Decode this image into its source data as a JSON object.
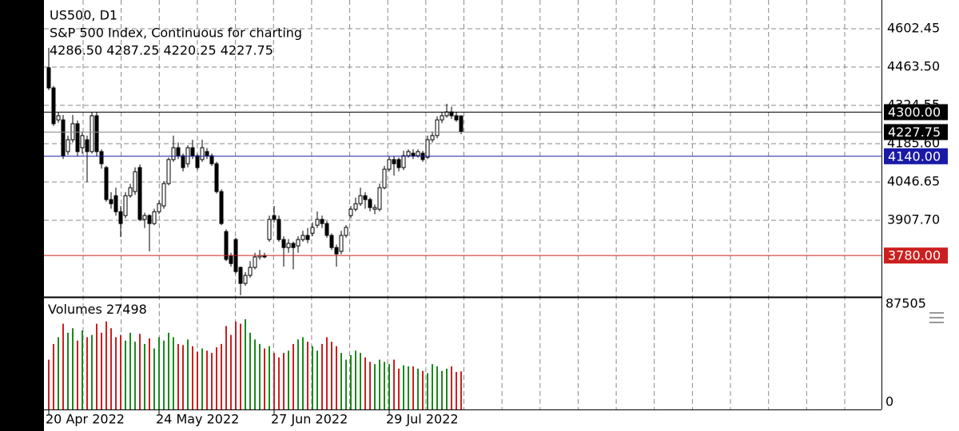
{
  "chart_data": {
    "type": "candlestick",
    "symbol": "US500, D1",
    "description": "S&P 500 Index, Continuous for charting",
    "ohlc_text": "4286.50 4287.25 4220.25 4227.75",
    "ylim": [
      3630,
      4706.7
    ],
    "yticks": [
      4602.45,
      {
        "value": 4463.5,
        "label": "4463.50"
      },
      {
        "value": 4324.55,
        "label": "4324.55"
      },
      {
        "value": 4185.6,
        "label": "4185.60"
      },
      4046.65,
      {
        "value": 3907.7,
        "label": "3907.70"
      }
    ],
    "xticks": [
      {
        "value": 0,
        "label": "20 Apr 2022"
      },
      {
        "value": 23,
        "label": "24 May 2022"
      },
      {
        "value": 47,
        "label": "27 Jun 2022"
      },
      {
        "value": 71,
        "label": "29 Jul 2022"
      }
    ],
    "up_color": "#ffffff",
    "down_color": "#000000",
    "candles": [
      [
        4461,
        4533,
        4380,
        4388
      ],
      [
        4388,
        4395,
        4250,
        4258
      ],
      [
        4272,
        4300,
        4262,
        4287
      ],
      [
        4272,
        4290,
        4130,
        4142
      ],
      [
        4157,
        4215,
        4145,
        4200
      ],
      [
        4200,
        4290,
        4190,
        4258
      ],
      [
        4258,
        4270,
        4140,
        4157
      ],
      [
        4171,
        4230,
        4150,
        4215
      ],
      [
        4200,
        4215,
        4046,
        4157
      ],
      [
        4157,
        4301,
        4150,
        4287
      ],
      [
        4287,
        4300,
        4140,
        4157
      ],
      [
        4157,
        4165,
        4095,
        4113
      ],
      [
        4099,
        4105,
        3975,
        3983
      ],
      [
        3983,
        4010,
        3950,
        3968
      ],
      [
        3997,
        4026,
        3925,
        3939
      ],
      [
        3939,
        3960,
        3847,
        3896
      ],
      [
        3925,
        4010,
        3915,
        3997
      ],
      [
        3997,
        4040,
        3990,
        4026
      ],
      [
        4012,
        4100,
        4000,
        4084
      ],
      [
        4099,
        4110,
        3905,
        3911
      ],
      [
        3911,
        3935,
        3880,
        3925
      ],
      [
        3925,
        3930,
        3795,
        3896
      ],
      [
        3896,
        3950,
        3890,
        3939
      ],
      [
        3939,
        3980,
        3930,
        3968
      ],
      [
        3960,
        4050,
        3950,
        4041
      ],
      [
        4041,
        4135,
        4035,
        4128
      ],
      [
        4128,
        4215,
        4120,
        4171
      ],
      [
        4171,
        4190,
        4130,
        4142
      ],
      [
        4142,
        4150,
        4085,
        4099
      ],
      [
        4113,
        4180,
        4100,
        4171
      ],
      [
        4171,
        4200,
        4130,
        4142
      ],
      [
        4142,
        4150,
        4090,
        4099
      ],
      [
        4128,
        4200,
        4120,
        4171
      ],
      [
        4157,
        4170,
        4130,
        4142
      ],
      [
        4142,
        4150,
        4105,
        4113
      ],
      [
        4113,
        4120,
        4005,
        4012
      ],
      [
        4012,
        4020,
        3890,
        3896
      ],
      [
        3867,
        3875,
        3760,
        3766
      ],
      [
        3780,
        3790,
        3740,
        3751
      ],
      [
        3838,
        3845,
        3715,
        3722
      ],
      [
        3737,
        3740,
        3636,
        3679
      ],
      [
        3679,
        3720,
        3670,
        3708
      ],
      [
        3708,
        3760,
        3700,
        3737
      ],
      [
        3737,
        3790,
        3730,
        3775
      ],
      [
        3775,
        3800,
        3765,
        3780
      ],
      [
        3780,
        3790,
        3770,
        3775
      ],
      [
        3838,
        3925,
        3830,
        3911
      ],
      [
        3925,
        3960,
        3900,
        3911
      ],
      [
        3911,
        3925,
        3830,
        3838
      ],
      [
        3838,
        3850,
        3740,
        3809
      ],
      [
        3809,
        3840,
        3790,
        3824
      ],
      [
        3824,
        3830,
        3730,
        3809
      ],
      [
        3815,
        3850,
        3790,
        3838
      ],
      [
        3838,
        3870,
        3830,
        3853
      ],
      [
        3853,
        3880,
        3825,
        3838
      ],
      [
        3861,
        3900,
        3850,
        3882
      ],
      [
        3890,
        3940,
        3880,
        3911
      ],
      [
        3911,
        3925,
        3880,
        3896
      ],
      [
        3896,
        3905,
        3845,
        3853
      ],
      [
        3853,
        3860,
        3800,
        3809
      ],
      [
        3809,
        3820,
        3740,
        3786
      ],
      [
        3795,
        3870,
        3785,
        3853
      ],
      [
        3853,
        3890,
        3845,
        3882
      ],
      [
        3925,
        3960,
        3915,
        3948
      ],
      [
        3948,
        3990,
        3940,
        3968
      ],
      [
        3968,
        4026,
        3960,
        3997
      ],
      [
        3997,
        4010,
        3950,
        3983
      ],
      [
        3983,
        3990,
        3940,
        3954
      ],
      [
        3948,
        3965,
        3930,
        3954
      ],
      [
        3948,
        4041,
        3940,
        4026
      ],
      [
        4026,
        4105,
        4020,
        4093
      ],
      [
        4093,
        4140,
        4085,
        4128
      ],
      [
        4128,
        4140,
        4070,
        4113
      ],
      [
        4128,
        4135,
        4085,
        4099
      ],
      [
        4099,
        4160,
        4090,
        4142
      ],
      [
        4142,
        4165,
        4135,
        4157
      ],
      [
        4151,
        4165,
        4130,
        4142
      ],
      [
        4142,
        4165,
        4135,
        4157
      ],
      [
        4151,
        4160,
        4120,
        4128
      ],
      [
        4136,
        4215,
        4130,
        4200
      ],
      [
        4200,
        4230,
        4190,
        4215
      ],
      [
        4215,
        4285,
        4205,
        4272
      ],
      [
        4272,
        4300,
        4260,
        4287
      ],
      [
        4287,
        4330,
        4280,
        4301
      ],
      [
        4301,
        4320,
        4275,
        4287
      ],
      [
        4287,
        4300,
        4265,
        4272
      ],
      [
        4286.5,
        4287.25,
        4220.25,
        4227.75
      ]
    ],
    "price_lines": [
      {
        "value": 4300,
        "label": "4300.00",
        "color": "#000000"
      },
      {
        "value": 4227.75,
        "color": "#000000"
      },
      {
        "value": 4140,
        "label": "4140.00",
        "color": "#1a1aa6"
      },
      {
        "value": 3780,
        "label": "3780.00",
        "color": "#cc1f1f"
      }
    ],
    "volume": {
      "name": "Volumes",
      "ylim": [
        0,
        87505
      ],
      "yticks": [
        0,
        87505
      ],
      "up_color": "#1a8a1a",
      "down_color": "#cc1f1f",
      "values": [
        38000,
        52000,
        58000,
        70000,
        62000,
        66000,
        55000,
        64000,
        58000,
        60000,
        70000,
        62000,
        72000,
        66000,
        58000,
        60000,
        55000,
        62000,
        54000,
        61000,
        52000,
        57000,
        48000,
        58000,
        55000,
        62000,
        58000,
        52000,
        51000,
        56000,
        50000,
        45000,
        48000,
        46000,
        44000,
        49000,
        52000,
        68000,
        60000,
        72000,
        70000,
        74000,
        62000,
        56000,
        52000,
        48000,
        50000,
        44000,
        40000,
        44000,
        46000,
        52000,
        56000,
        58000,
        54000,
        50000,
        46000,
        52000,
        58000,
        54000,
        50000,
        44000,
        38000,
        42000,
        46000,
        44000,
        40000,
        36000,
        34000,
        38000,
        36000,
        34000,
        38000,
        30000,
        33000,
        32000,
        32000,
        30000,
        28000,
        26000,
        34000,
        32000,
        28000,
        30000,
        32000,
        27000,
        27498
      ]
    }
  }
}
